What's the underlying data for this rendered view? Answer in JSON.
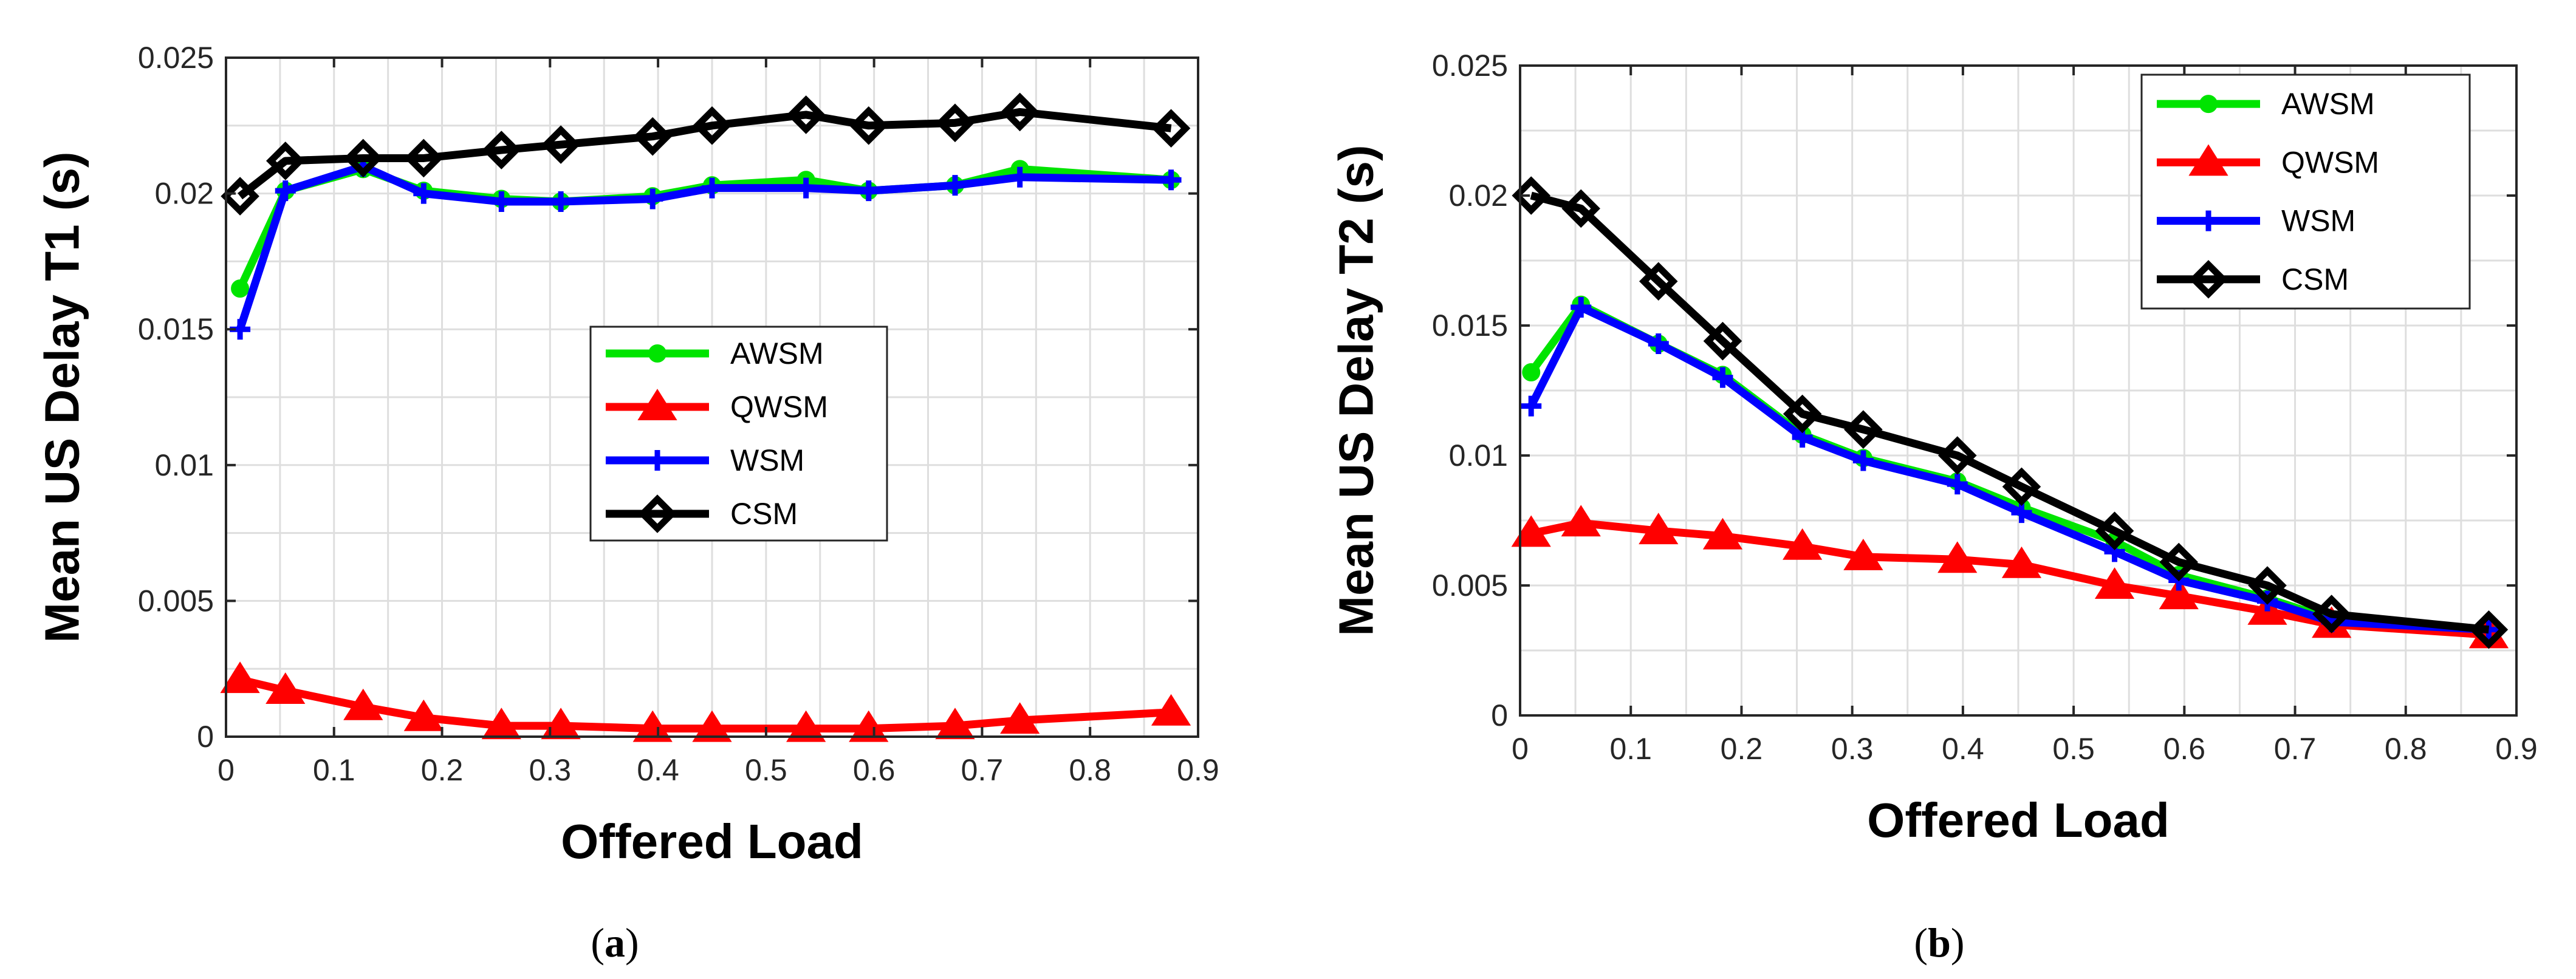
{
  "chart_data": [
    {
      "type": "line",
      "caption": "(a)",
      "caption_letter": "a",
      "xlabel": "Offered Load",
      "ylabel": "Mean US Delay T1 (s)",
      "xlim": [
        0,
        0.9
      ],
      "ylim": [
        0,
        0.025
      ],
      "xticks": [
        "0",
        "0.1",
        "0.2",
        "0.3",
        "0.4",
        "0.5",
        "0.6",
        "0.7",
        "0.8",
        "0.9"
      ],
      "yticks": [
        "0",
        "0.005",
        "0.01",
        "0.015",
        "0.02",
        "0.025"
      ],
      "grid": true,
      "legend_position": "center-right",
      "x": [
        0.013,
        0.055,
        0.127,
        0.183,
        0.255,
        0.31,
        0.395,
        0.45,
        0.537,
        0.595,
        0.675,
        0.735,
        0.875
      ],
      "series": [
        {
          "name": "AWSM",
          "color": "#00e400",
          "marker": "circle",
          "values": [
            0.0165,
            0.0201,
            0.0209,
            0.0201,
            0.0198,
            0.0197,
            0.0199,
            0.0203,
            0.0205,
            0.0201,
            0.0203,
            0.0209,
            0.0205
          ]
        },
        {
          "name": "QWSM",
          "color": "#ff0000",
          "marker": "triangle",
          "values": [
            0.0021,
            0.0017,
            0.0011,
            0.0007,
            0.0004,
            0.0004,
            0.0003,
            0.0003,
            0.0003,
            0.0003,
            0.0004,
            0.0006,
            0.0009
          ]
        },
        {
          "name": "WSM",
          "color": "#0000ff",
          "marker": "plus",
          "values": [
            0.015,
            0.0201,
            0.021,
            0.02,
            0.0197,
            0.0197,
            0.0198,
            0.0202,
            0.0202,
            0.0201,
            0.0203,
            0.0206,
            0.0205
          ]
        },
        {
          "name": "CSM",
          "color": "#000000",
          "marker": "diamond",
          "values": [
            0.0199,
            0.0212,
            0.0213,
            0.0213,
            0.0216,
            0.0218,
            0.0221,
            0.0225,
            0.0229,
            0.0225,
            0.0226,
            0.023,
            0.0224
          ]
        }
      ]
    },
    {
      "type": "line",
      "caption": "(b)",
      "caption_letter": "b",
      "xlabel": "Offered Load",
      "ylabel": "Mean US Delay T2 (s)",
      "xlim": [
        0,
        0.9
      ],
      "ylim": [
        0,
        0.025
      ],
      "xticks": [
        "0",
        "0.1",
        "0.2",
        "0.3",
        "0.4",
        "0.5",
        "0.6",
        "0.7",
        "0.8",
        "0.9"
      ],
      "yticks": [
        "0",
        "0.005",
        "0.01",
        "0.015",
        "0.02",
        "0.025"
      ],
      "grid": true,
      "legend_position": "top-right",
      "x": [
        0.01,
        0.055,
        0.125,
        0.183,
        0.255,
        0.31,
        0.395,
        0.453,
        0.537,
        0.595,
        0.675,
        0.733,
        0.875
      ],
      "series": [
        {
          "name": "AWSM",
          "color": "#00e400",
          "marker": "circle",
          "values": [
            0.0132,
            0.0158,
            0.0143,
            0.0131,
            0.0108,
            0.0099,
            0.009,
            0.008,
            0.0067,
            0.0054,
            0.0045,
            0.0037,
            0.0033
          ]
        },
        {
          "name": "QWSM",
          "color": "#ff0000",
          "marker": "triangle",
          "values": [
            0.007,
            0.0074,
            0.0071,
            0.0069,
            0.0065,
            0.0061,
            0.006,
            0.0058,
            0.005,
            0.0046,
            0.004,
            0.0035,
            0.0031
          ]
        },
        {
          "name": "WSM",
          "color": "#0000ff",
          "marker": "plus",
          "values": [
            0.0119,
            0.0157,
            0.0143,
            0.013,
            0.0107,
            0.0098,
            0.0089,
            0.0078,
            0.0063,
            0.0052,
            0.0044,
            0.0036,
            0.0033
          ]
        },
        {
          "name": "CSM",
          "color": "#000000",
          "marker": "diamond",
          "values": [
            0.02,
            0.0195,
            0.0167,
            0.0144,
            0.0116,
            0.011,
            0.01,
            0.0088,
            0.0071,
            0.0059,
            0.005,
            0.0039,
            0.0033
          ]
        }
      ]
    }
  ]
}
